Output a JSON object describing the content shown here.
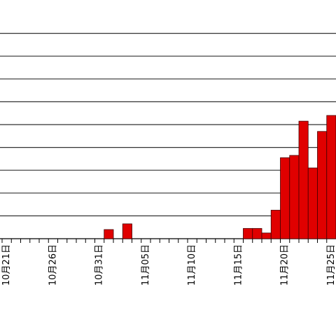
{
  "chart_data": {
    "type": "bar",
    "categories": [
      "10月21日",
      null,
      null,
      null,
      null,
      "10月26日",
      null,
      null,
      null,
      null,
      "10月31日",
      null,
      null,
      null,
      null,
      "11月05日",
      null,
      null,
      null,
      null,
      "11月10日",
      null,
      null,
      null,
      null,
      "11月15日",
      null,
      null,
      null,
      null,
      "11月20日",
      null,
      null,
      null,
      null,
      "11月25日"
    ],
    "values": [
      0,
      0,
      0,
      0,
      0,
      0,
      0,
      0,
      0,
      0,
      0,
      0.4,
      0,
      0.65,
      0,
      0,
      0,
      0,
      0,
      0,
      0,
      0,
      0,
      0,
      0,
      0,
      0.45,
      0.45,
      0.25,
      1.25,
      3.55,
      3.65,
      5.15,
      3.1,
      4.7,
      5.4
    ],
    "color": "#e00000",
    "ylim": [
      0,
      10.4
    ],
    "yticks": [
      0,
      1,
      2,
      3,
      4,
      5,
      6,
      7,
      8,
      9
    ],
    "grid": true
  }
}
